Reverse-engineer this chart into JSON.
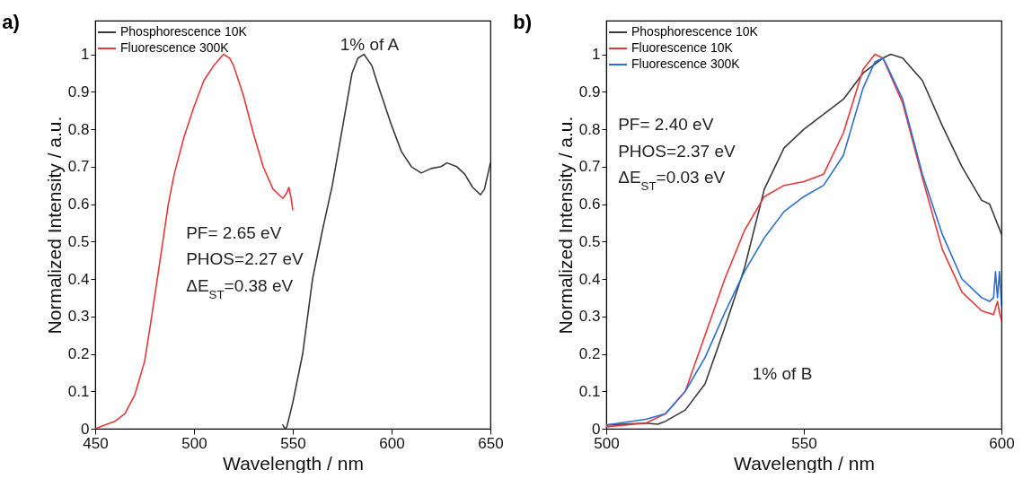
{
  "chart_data": [
    {
      "type": "line",
      "title": "a)",
      "xlabel": "Wavelength / nm",
      "ylabel": "Normalized Intensity / a.u.",
      "xlim": [
        450,
        650
      ],
      "xticks": [
        450,
        500,
        550,
        600,
        650
      ],
      "ylim": [
        0,
        1.09
      ],
      "yticks": [
        0,
        0.1,
        0.2,
        0.3,
        0.4,
        0.5,
        0.6,
        0.7,
        0.8,
        0.9,
        1
      ],
      "grid": false,
      "legend": "top left",
      "line_style": "solid",
      "marker": "none",
      "annotations": [
        "1% of A",
        "PF= 2.65 eV",
        "PHOS=2.27 eV",
        "ΔE$_{ST}$=0.38 eV"
      ],
      "series": [
        {
          "name": "Phosphorescence 10K",
          "color": "#3a3a3a",
          "x": [
            545,
            546,
            547,
            550,
            555,
            560,
            565,
            570,
            575,
            580,
            583,
            586,
            590,
            593,
            600,
            605,
            610,
            615,
            620,
            625,
            628,
            633,
            637,
            641,
            645,
            647,
            650
          ],
          "values": [
            0.01,
            0.0,
            0.005,
            0.07,
            0.2,
            0.4,
            0.53,
            0.65,
            0.8,
            0.95,
            0.99,
            1.0,
            0.97,
            0.92,
            0.81,
            0.74,
            0.7,
            0.683,
            0.695,
            0.7,
            0.71,
            0.7,
            0.68,
            0.645,
            0.625,
            0.64,
            0.71
          ]
        },
        {
          "name": "Fluorescence 300K",
          "color": "#e8383b",
          "x": [
            450,
            455,
            460,
            465,
            470,
            475,
            478,
            482,
            487,
            490,
            495,
            500,
            505,
            510,
            515,
            518,
            520,
            525,
            530,
            535,
            540,
            545,
            547,
            548,
            549,
            550
          ],
          "values": [
            0.0,
            0.01,
            0.02,
            0.04,
            0.09,
            0.18,
            0.28,
            0.42,
            0.6,
            0.68,
            0.78,
            0.86,
            0.93,
            0.97,
            1.0,
            0.99,
            0.97,
            0.89,
            0.79,
            0.7,
            0.64,
            0.615,
            0.63,
            0.645,
            0.62,
            0.585
          ]
        }
      ]
    },
    {
      "type": "line",
      "title": "b)",
      "xlabel": "Wavelength / nm",
      "ylabel": "Normalized Intensity / a.u.",
      "xlim": [
        500,
        600
      ],
      "xticks": [
        500,
        550,
        600
      ],
      "ylim": [
        0,
        1.09
      ],
      "yticks": [
        0,
        0.1,
        0.2,
        0.3,
        0.4,
        0.5,
        0.6,
        0.7,
        0.8,
        0.9,
        1
      ],
      "grid": false,
      "legend": "top left",
      "line_style": "solid",
      "marker": "none",
      "annotations": [
        "PF= 2.40 eV",
        "PHOS=2.37 eV",
        "ΔE$_{ST}$=0.03 eV",
        "1% of B"
      ],
      "series": [
        {
          "name": "Phosphorescence 10K",
          "color": "#3a3a3a",
          "x": [
            500,
            510,
            513,
            515,
            520,
            525,
            530,
            535,
            540,
            545,
            550,
            555,
            560,
            565,
            570,
            572,
            575,
            580,
            585,
            590,
            595,
            597,
            600
          ],
          "values": [
            0.01,
            0.015,
            0.012,
            0.02,
            0.05,
            0.12,
            0.27,
            0.43,
            0.64,
            0.75,
            0.8,
            0.84,
            0.88,
            0.95,
            0.99,
            1.0,
            0.99,
            0.93,
            0.81,
            0.7,
            0.61,
            0.6,
            0.52
          ]
        },
        {
          "name": "Fluorescence 10K",
          "color": "#e8383b",
          "x": [
            500,
            510,
            515,
            520,
            525,
            530,
            535,
            540,
            545,
            550,
            555,
            560,
            565,
            568,
            570,
            575,
            580,
            585,
            590,
            595,
            598,
            599,
            599.5,
            600
          ],
          "values": [
            0.005,
            0.015,
            0.04,
            0.1,
            0.25,
            0.4,
            0.53,
            0.62,
            0.65,
            0.66,
            0.68,
            0.79,
            0.96,
            1.0,
            0.99,
            0.87,
            0.67,
            0.48,
            0.365,
            0.315,
            0.305,
            0.34,
            0.31,
            0.29
          ]
        },
        {
          "name": "Fluorescence 300K",
          "color": "#2a6ed8",
          "x": [
            500,
            510,
            515,
            520,
            525,
            530,
            535,
            540,
            545,
            550,
            555,
            560,
            565,
            568,
            570,
            571,
            575,
            580,
            585,
            590,
            595,
            597,
            598,
            598.5,
            599,
            599.5,
            600
          ],
          "values": [
            0.01,
            0.025,
            0.04,
            0.1,
            0.19,
            0.31,
            0.42,
            0.51,
            0.58,
            0.62,
            0.65,
            0.73,
            0.91,
            0.98,
            0.99,
            0.97,
            0.88,
            0.68,
            0.52,
            0.4,
            0.35,
            0.34,
            0.35,
            0.42,
            0.35,
            0.42,
            0.33
          ]
        }
      ]
    }
  ]
}
